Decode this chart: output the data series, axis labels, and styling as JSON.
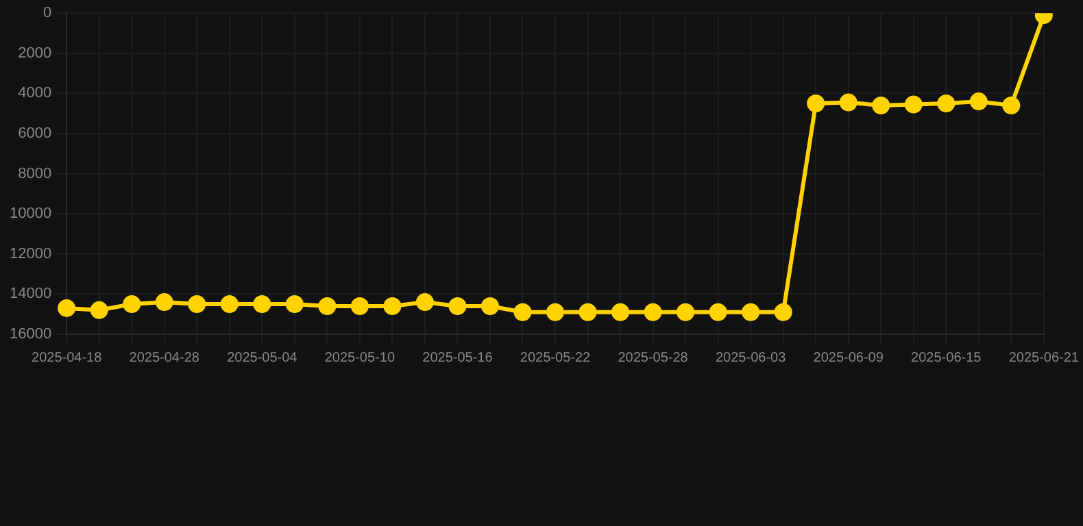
{
  "chart_data": {
    "type": "line",
    "categories": [
      "2025-04-18",
      null,
      null,
      "2025-04-28",
      null,
      null,
      "2025-05-04",
      null,
      null,
      "2025-05-10",
      null,
      null,
      "2025-05-16",
      null,
      null,
      "2025-05-22",
      null,
      null,
      "2025-05-28",
      null,
      null,
      "2025-06-03",
      null,
      null,
      "2025-06-09",
      null,
      null,
      "2025-06-15",
      null,
      null,
      "2025-06-21"
    ],
    "series": [
      {
        "color": "#ffd200",
        "values": [
          14700,
          14800,
          14500,
          14400,
          14500,
          14500,
          14500,
          14500,
          14600,
          14600,
          14600,
          14400,
          14600,
          14600,
          14900,
          14900,
          14900,
          14900,
          14900,
          14900,
          14900,
          14900,
          14900,
          4500,
          4450,
          4600,
          4550,
          4500,
          4400,
          4600,
          100
        ]
      }
    ],
    "ylim": [
      16000,
      0
    ],
    "yticks": [
      0,
      2000,
      4000,
      6000,
      8000,
      10000,
      12000,
      14000,
      16000
    ],
    "grid": true,
    "marker": "circle",
    "line_style": "solid",
    "legend": false
  }
}
